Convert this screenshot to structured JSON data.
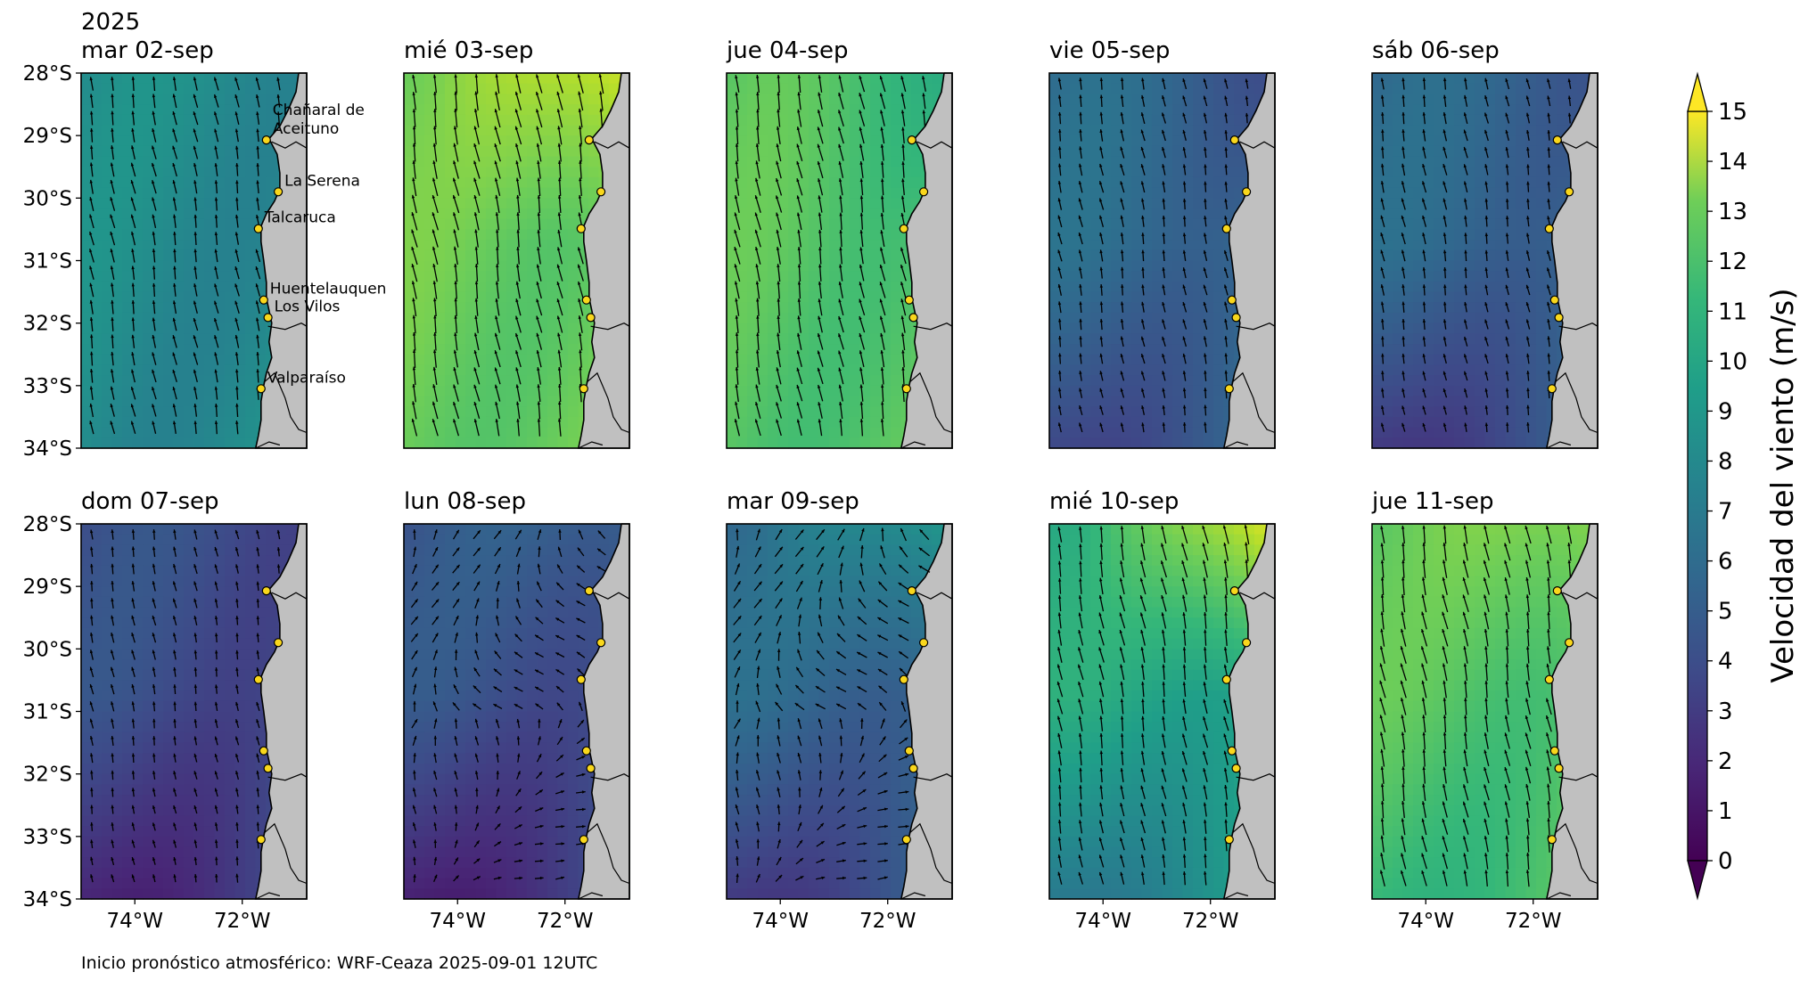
{
  "figure": {
    "year": "2025",
    "footer": "Inicio pronóstico atmosférico: WRF-Ceaza 2025-09-01 12UTC",
    "colorbar_label": "Velocidad del viento (m/s)",
    "colorbar_ticks": [
      "0",
      "1",
      "2",
      "3",
      "4",
      "5",
      "6",
      "7",
      "8",
      "9",
      "10",
      "11",
      "12",
      "13",
      "14",
      "15"
    ],
    "lat_ticks": [
      "28°S",
      "29°S",
      "30°S",
      "31°S",
      "32°S",
      "33°S",
      "34°S"
    ],
    "lon_ticks": [
      "74°W",
      "72°W"
    ],
    "cities": [
      {
        "name": "Chañaral de Aceituno",
        "lines": [
          "Chañaral de",
          "Aceituno"
        ],
        "lon": -71.55,
        "lat": -29.07
      },
      {
        "name": "La Serena",
        "lines": [
          "La Serena"
        ],
        "lon": -71.33,
        "lat": -29.9
      },
      {
        "name": "Talcaruca",
        "lines": [
          "Talcaruca"
        ],
        "lon": -71.7,
        "lat": -30.49
      },
      {
        "name": "Huentelauquen",
        "lines": [
          "Huentelauquen"
        ],
        "lon": -71.6,
        "lat": -31.63
      },
      {
        "name": "Los Vilos",
        "lines": [
          "Los Vilos"
        ],
        "lon": -71.52,
        "lat": -31.91
      },
      {
        "name": "Valparaíso",
        "lines": [
          "Valparaíso"
        ],
        "lon": -71.65,
        "lat": -33.05
      }
    ],
    "colors": {
      "land": "#c0c0c0",
      "city_marker": "#f9d71c",
      "coast": "#000000"
    }
  },
  "panels": [
    {
      "title": "mar 02-sep",
      "wind": {
        "base": 7.2,
        "north_boost": 0,
        "south_low": 0,
        "dir": "S"
      }
    },
    {
      "title": "mié 03-sep",
      "wind": {
        "base": 11.5,
        "north_boost": 2.5,
        "south_low": 0,
        "dir": "S"
      }
    },
    {
      "title": "jue 04-sep",
      "wind": {
        "base": 11.0,
        "north_boost": -1.0,
        "south_low": 0,
        "dir": "S"
      }
    },
    {
      "title": "vie 05-sep",
      "wind": {
        "base": 5.2,
        "north_boost": -1.0,
        "south_low": -2.0,
        "dir": "S"
      }
    },
    {
      "title": "sáb 06-sep",
      "wind": {
        "base": 5.0,
        "north_boost": -0.5,
        "south_low": -2.5,
        "dir": "S"
      }
    },
    {
      "title": "dom 07-sep",
      "wind": {
        "base": 3.5,
        "north_boost": 0,
        "south_low": -2.0,
        "dir": "S"
      }
    },
    {
      "title": "lun 08-sep",
      "wind": {
        "base": 3.8,
        "north_boost": 1.0,
        "south_low": -2.5,
        "dir": "W"
      }
    },
    {
      "title": "mar 09-sep",
      "wind": {
        "base": 5.0,
        "north_boost": 3.0,
        "south_low": -2.5,
        "dir": "W"
      }
    },
    {
      "title": "mié 10-sep",
      "wind": {
        "base": 9.0,
        "north_boost": 5.0,
        "south_low": -3.0,
        "dir": "S"
      }
    },
    {
      "title": "jue 11-sep",
      "wind": {
        "base": 11.0,
        "north_boost": 1.5,
        "south_low": -1.0,
        "dir": "S"
      }
    }
  ]
}
